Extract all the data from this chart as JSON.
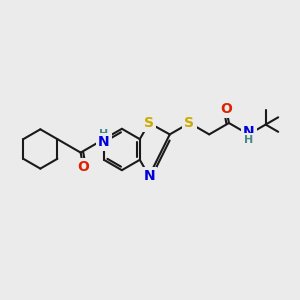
{
  "bg": "#ebebeb",
  "bond_color": "#1a1a1a",
  "S_color": "#ccaa00",
  "N_color": "#0000dd",
  "NH_color": "#4a8888",
  "O_color": "#dd2200",
  "lw": 1.5,
  "dbl_sep": 0.05,
  "figsize": [
    3.0,
    3.0
  ],
  "dpi": 100,
  "xlim": [
    0.0,
    5.8
  ],
  "ylim": [
    1.2,
    4.2
  ]
}
